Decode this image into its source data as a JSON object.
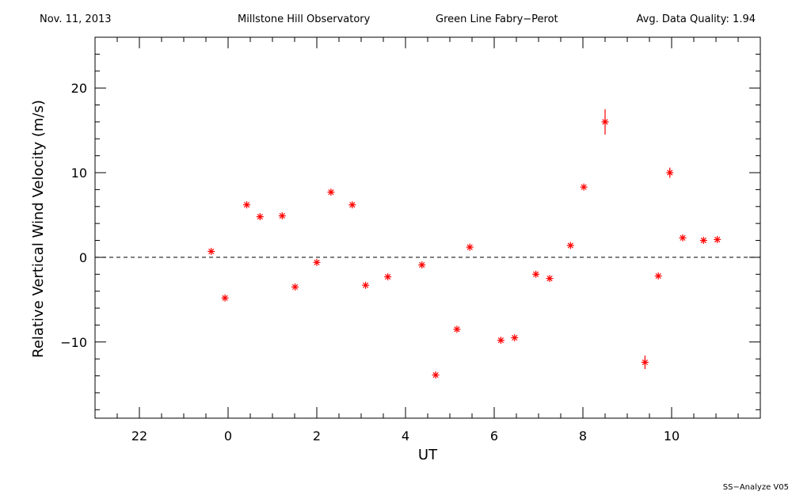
{
  "header": {
    "date": "Nov. 11, 2013",
    "observatory": "Millstone Hill Observatory",
    "instrument": "Green Line Fabry−Perot",
    "quality_label": "Avg. Data Quality:",
    "quality_value": "1.94"
  },
  "footer": {
    "software": "SS−Analyze V05"
  },
  "colors": {
    "points": "#ff0000",
    "axes": "#000000",
    "zero_line": "#000000"
  },
  "chart_data": {
    "type": "scatter",
    "xlabel": "UT",
    "ylabel": "Relative Vertical Wind Velocity (m/s)",
    "xlim": [
      21.0,
      36.0
    ],
    "ylim": [
      -19.0,
      26.0
    ],
    "x_major_ticks": [
      22,
      24,
      26,
      28,
      30,
      32,
      34
    ],
    "x_tick_labels": [
      "22",
      "0",
      "2",
      "4",
      "6",
      "8",
      "10"
    ],
    "y_major_ticks": [
      -10,
      0,
      10,
      20
    ],
    "y_tick_labels": [
      "−10",
      "0",
      "10",
      "20"
    ],
    "zero_line": true,
    "grid": false,
    "series": [
      {
        "marker": "asterisk",
        "x": [
          23.62,
          23.93,
          24.42,
          24.72,
          25.22,
          25.51,
          26.0,
          26.32,
          26.8,
          27.1,
          27.6,
          28.37,
          28.68,
          29.16,
          29.45,
          30.15,
          30.46,
          30.94,
          31.25,
          31.72,
          32.02,
          32.5,
          33.4,
          33.7,
          33.96,
          34.25,
          34.72,
          35.03
        ],
        "y": [
          0.7,
          -4.8,
          6.2,
          4.8,
          4.9,
          -3.5,
          -0.6,
          7.7,
          6.2,
          -3.3,
          -2.3,
          -0.9,
          -13.9,
          -8.5,
          1.2,
          -9.8,
          -9.5,
          -2.0,
          -2.5,
          1.4,
          8.3,
          16.0,
          -12.4,
          -2.2,
          10.0,
          2.3,
          2.0,
          2.1
        ],
        "y_error": [
          0,
          0,
          0,
          0,
          0,
          0,
          0,
          0,
          0,
          0,
          0,
          0,
          0,
          0,
          0,
          0,
          0,
          0,
          0,
          0,
          0,
          1.5,
          0.8,
          0,
          0.6,
          0,
          0,
          0
        ]
      }
    ]
  }
}
